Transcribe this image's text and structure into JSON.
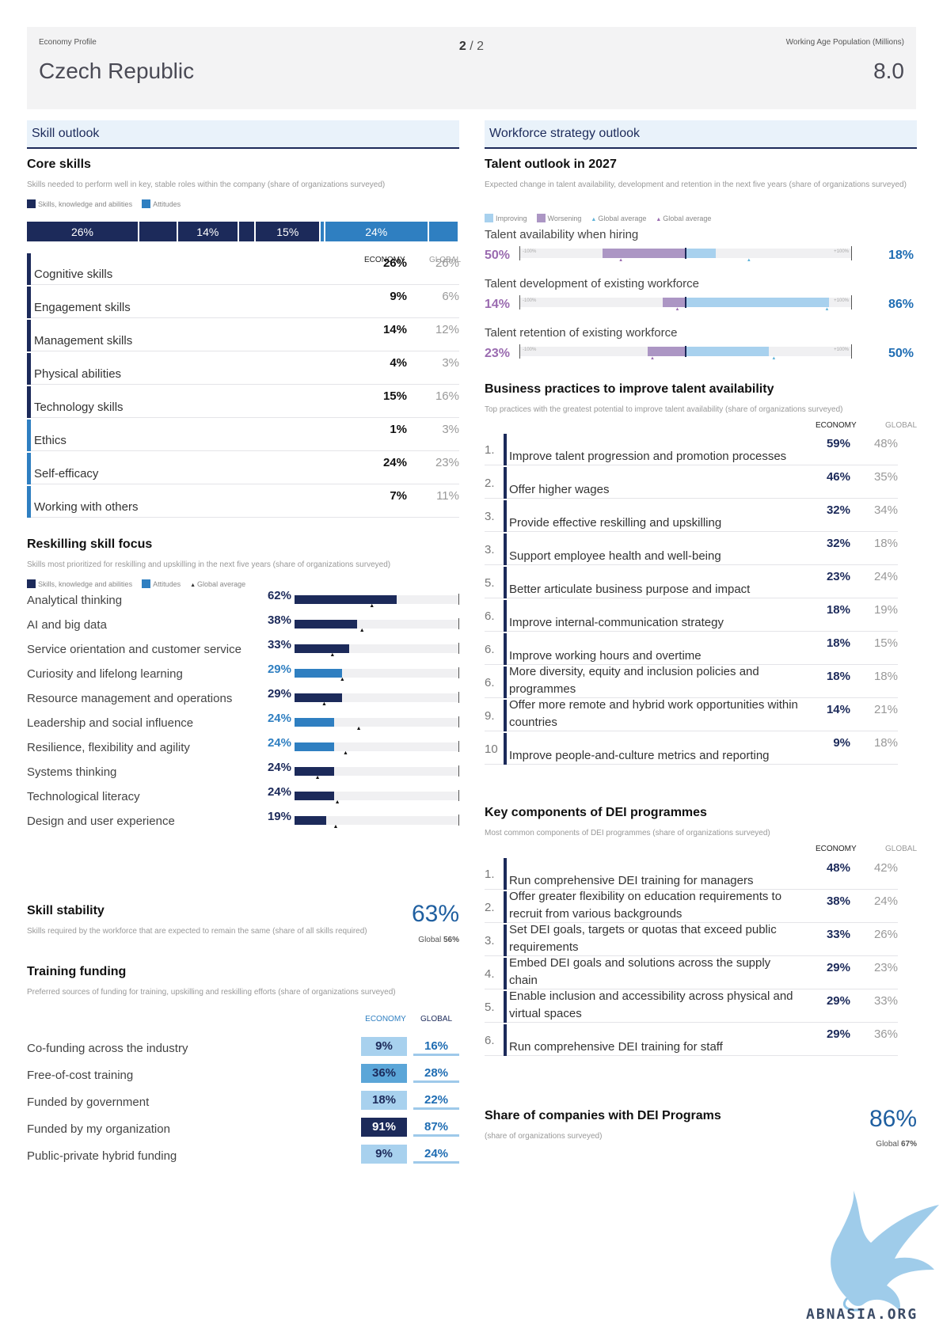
{
  "header": {
    "eyebrow_left": "Economy Profile",
    "title": "Czech Republic",
    "page_current": "2",
    "page_sep": "/",
    "page_total": "2",
    "eyebrow_right": "Working Age Population (Millions)",
    "population": "8.0"
  },
  "skill_outlook": {
    "section_title": "Skill outlook",
    "core": {
      "title": "Core skills",
      "subtitle": "Skills needed to perform well in key, stable roles within the company (share of organizations surveyed)",
      "legend": [
        "Skills, knowledge and abilities",
        "Attitudes"
      ],
      "segments": [
        {
          "label": "26%",
          "value": 26,
          "kind": "skills"
        },
        {
          "label": "",
          "value": 9,
          "kind": "skills"
        },
        {
          "label": "14%",
          "value": 14,
          "kind": "skills"
        },
        {
          "label": "",
          "value": 4,
          "kind": "skills"
        },
        {
          "label": "15%",
          "value": 15,
          "kind": "skills"
        },
        {
          "label": "",
          "value": 1,
          "kind": "attitudes"
        },
        {
          "label": "24%",
          "value": 24,
          "kind": "attitudes"
        },
        {
          "label": "",
          "value": 7,
          "kind": "attitudes"
        }
      ],
      "col_economy": "ECONOMY",
      "col_global": "GLOBAL",
      "rows": [
        {
          "name": "Cognitive skills",
          "economy": "26%",
          "global": "26%",
          "kind": "skills"
        },
        {
          "name": "Engagement skills",
          "economy": "9%",
          "global": "6%",
          "kind": "skills"
        },
        {
          "name": "Management skills",
          "economy": "14%",
          "global": "12%",
          "kind": "skills"
        },
        {
          "name": "Physical abilities",
          "economy": "4%",
          "global": "3%",
          "kind": "skills"
        },
        {
          "name": "Technology skills",
          "economy": "15%",
          "global": "16%",
          "kind": "skills"
        },
        {
          "name": "Ethics",
          "economy": "1%",
          "global": "3%",
          "kind": "attitudes"
        },
        {
          "name": "Self-efficacy",
          "economy": "24%",
          "global": "23%",
          "kind": "attitudes"
        },
        {
          "name": "Working with others",
          "economy": "7%",
          "global": "11%",
          "kind": "attitudes"
        }
      ]
    },
    "reskilling": {
      "title": "Reskilling skill focus",
      "subtitle": "Skills most prioritized for reskilling and upskilling in the next five years (share of organizations surveyed)",
      "legend": [
        "Skills, knowledge and abilities",
        "Attitudes",
        "Global average"
      ],
      "rows": [
        {
          "name": "Analytical thinking",
          "value": 62,
          "label": "62%",
          "global": 47,
          "kind": "skills"
        },
        {
          "name": "AI and big data",
          "value": 38,
          "label": "38%",
          "global": 41,
          "kind": "skills"
        },
        {
          "name": "Service orientation and customer service",
          "value": 33,
          "label": "33%",
          "global": 23,
          "kind": "skills"
        },
        {
          "name": "Curiosity and lifelong learning",
          "value": 29,
          "label": "29%",
          "global": 29,
          "kind": "attitudes"
        },
        {
          "name": "Resource management and operations",
          "value": 29,
          "label": "29%",
          "global": 18,
          "kind": "skills"
        },
        {
          "name": "Leadership and social influence",
          "value": 24,
          "label": "24%",
          "global": 39,
          "kind": "attitudes"
        },
        {
          "name": "Resilience, flexibility and agility",
          "value": 24,
          "label": "24%",
          "global": 31,
          "kind": "attitudes"
        },
        {
          "name": "Systems thinking",
          "value": 24,
          "label": "24%",
          "global": 14,
          "kind": "skills"
        },
        {
          "name": "Technological literacy",
          "value": 24,
          "label": "24%",
          "global": 26,
          "kind": "skills"
        },
        {
          "name": "Design and user experience",
          "value": 19,
          "label": "19%",
          "global": 25,
          "kind": "skills"
        }
      ]
    },
    "stability": {
      "title": "Skill stability",
      "subtitle": "Skills required by the workforce that are expected to remain the same (share of all skills required)",
      "value": "63%",
      "global_label": "Global",
      "global_value": "56%"
    },
    "funding": {
      "title": "Training funding",
      "subtitle": "Preferred sources of funding for training, upskilling and reskilling efforts (share of organizations surveyed)",
      "col_economy": "ECONOMY",
      "col_global": "GLOBAL",
      "rows": [
        {
          "name": "Co-funding across the industry",
          "economy": "9%",
          "global": "16%",
          "shade": "#a8d1ee",
          "text": "#1c2a5a"
        },
        {
          "name": "Free-of-cost training",
          "economy": "36%",
          "global": "28%",
          "shade": "#5ba6d8",
          "text": "#1c2a5a"
        },
        {
          "name": "Funded by government",
          "economy": "18%",
          "global": "22%",
          "shade": "#a8d1ee",
          "text": "#1c2a5a"
        },
        {
          "name": "Funded by my organization",
          "economy": "91%",
          "global": "87%",
          "shade": "#1c2a5a",
          "text": "#ffffff"
        },
        {
          "name": "Public-private hybrid funding",
          "economy": "9%",
          "global": "24%",
          "shade": "#a8d1ee",
          "text": "#1c2a5a"
        }
      ]
    }
  },
  "workforce": {
    "section_title": "Workforce strategy outlook",
    "talent": {
      "title": "Talent outlook in 2027",
      "subtitle": "Expected change in talent availability, development and retention in the next five years (share of organizations surveyed)",
      "legend": [
        "Improving",
        "Worsening",
        "Global average",
        "Global average"
      ],
      "cap_left": "-100%",
      "cap_right": "+100%",
      "rows": [
        {
          "name": "Talent availability when hiring",
          "worsening": 50,
          "improving": 18,
          "worsening_label": "50%",
          "improving_label": "18%",
          "g_worse": 39,
          "g_improve": 38
        },
        {
          "name": "Talent development of existing workforce",
          "worsening": 14,
          "improving": 86,
          "worsening_label": "14%",
          "improving_label": "86%",
          "g_worse": 5,
          "g_improve": 85
        },
        {
          "name": "Talent retention of existing workforce",
          "worsening": 23,
          "improving": 50,
          "worsening_label": "23%",
          "improving_label": "50%",
          "g_worse": 20,
          "g_improve": 53
        }
      ]
    },
    "business": {
      "title": "Business practices to improve talent availability",
      "subtitle": "Top practices with the greatest potential to improve talent availability (share of organizations surveyed)",
      "col_economy": "ECONOMY",
      "col_global": "GLOBAL",
      "rows": [
        {
          "num": "1.",
          "name": "Improve talent progression and promotion processes",
          "economy": "59%",
          "global": "48%"
        },
        {
          "num": "2.",
          "name": "Offer higher wages",
          "economy": "46%",
          "global": "35%"
        },
        {
          "num": "3.",
          "name": "Provide effective reskilling and upskilling",
          "economy": "32%",
          "global": "34%"
        },
        {
          "num": "3.",
          "name": "Support employee health and well-being",
          "economy": "32%",
          "global": "18%"
        },
        {
          "num": "5.",
          "name": "Better articulate business purpose and impact",
          "economy": "23%",
          "global": "24%"
        },
        {
          "num": "6.",
          "name": "Improve internal-communication strategy",
          "economy": "18%",
          "global": "19%"
        },
        {
          "num": "6.",
          "name": "Improve working hours and overtime",
          "economy": "18%",
          "global": "15%"
        },
        {
          "num": "6.",
          "name": "More diversity, equity and inclusion policies and programmes",
          "economy": "18%",
          "global": "18%"
        },
        {
          "num": "9.",
          "name": "Offer more remote and hybrid work opportunities within countries",
          "economy": "14%",
          "global": "21%"
        },
        {
          "num": "10",
          "name": "Improve people-and-culture metrics and reporting",
          "economy": "9%",
          "global": "18%"
        }
      ]
    },
    "dei": {
      "title": "Key components of DEI programmes",
      "subtitle": "Most common components of DEI programmes (share of organizations surveyed)",
      "col_economy": "ECONOMY",
      "col_global": "GLOBAL",
      "rows": [
        {
          "num": "1.",
          "name": "Run comprehensive DEI training for managers",
          "economy": "48%",
          "global": "42%"
        },
        {
          "num": "2.",
          "name": "Offer greater flexibility on education requirements to recruit from various backgrounds",
          "economy": "38%",
          "global": "24%"
        },
        {
          "num": "3.",
          "name": "Set DEI goals, targets or quotas that exceed public requirements",
          "economy": "33%",
          "global": "26%"
        },
        {
          "num": "4.",
          "name": "Embed DEI goals and solutions across the supply chain",
          "economy": "29%",
          "global": "23%"
        },
        {
          "num": "5.",
          "name": "Enable inclusion and accessibility across physical and virtual spaces",
          "economy": "29%",
          "global": "33%"
        },
        {
          "num": "6.",
          "name": "Run comprehensive DEI training for staff",
          "economy": "29%",
          "global": "36%"
        }
      ]
    },
    "share": {
      "title": "Share of companies with DEI Programs",
      "subtitle": "(share of organizations surveyed)",
      "value": "86%",
      "global_label": "Global",
      "global_value": "67%"
    }
  },
  "watermark": {
    "text": "ABNASIA.ORG"
  },
  "colors": {
    "navy": "#1c2a5a",
    "blue": "#2f7fc1",
    "light_blue": "#a8d1ee",
    "purple": "#ac96c4"
  }
}
